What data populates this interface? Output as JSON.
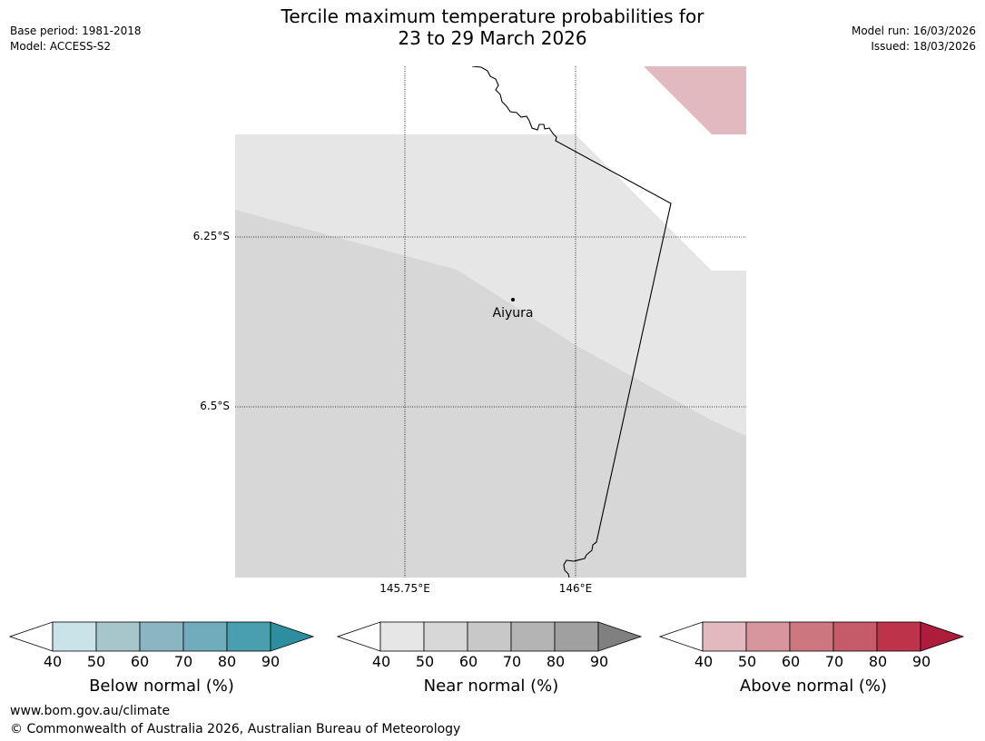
{
  "title": {
    "line1": "Tercile maximum temperature probabilities for",
    "line2": "23 to 29 March 2026"
  },
  "meta_left": {
    "base_period": "Base period: 1981-2018",
    "model": "Model: ACCESS-S2"
  },
  "meta_right": {
    "model_run": "Model run: 16/03/2026",
    "issued": "Issued: 18/03/2026"
  },
  "map": {
    "lat_labels": [
      "6.25°S",
      "6.5°S"
    ],
    "lon_labels": [
      "145.75°E",
      "146°E"
    ],
    "place": {
      "name": "Aiyura"
    },
    "colors": {
      "near_normal_40_50": "#e6e6e6",
      "near_normal_50_60": "#d7d7d7",
      "above_normal_40_50": "#e2b9bf",
      "coastline": "#000000"
    }
  },
  "colorbars": [
    {
      "id": "below",
      "title": "Below normal (%)",
      "ticks": [
        "40",
        "50",
        "60",
        "70",
        "80",
        "90"
      ],
      "colors": [
        "#c9e3e8",
        "#a7c6cc",
        "#8ab6c2",
        "#6fadbc",
        "#4a9fae",
        "#2d8e9f"
      ]
    },
    {
      "id": "near",
      "title": "Near normal (%)",
      "ticks": [
        "40",
        "50",
        "60",
        "70",
        "80",
        "90"
      ],
      "colors": [
        "#e6e6e6",
        "#d7d7d7",
        "#c8c8c8",
        "#b4b4b4",
        "#a0a0a0",
        "#808080"
      ]
    },
    {
      "id": "above",
      "title": "Above normal (%)",
      "ticks": [
        "40",
        "50",
        "60",
        "70",
        "80",
        "90"
      ],
      "colors": [
        "#e2b9bf",
        "#d7959e",
        "#cc7780",
        "#c55b68",
        "#bd344a",
        "#ae1c3c"
      ]
    }
  ],
  "footer": {
    "url": "www.bom.gov.au/climate",
    "copyright": "© Commonwealth of Australia 2026, Australian Bureau of Meteorology"
  }
}
